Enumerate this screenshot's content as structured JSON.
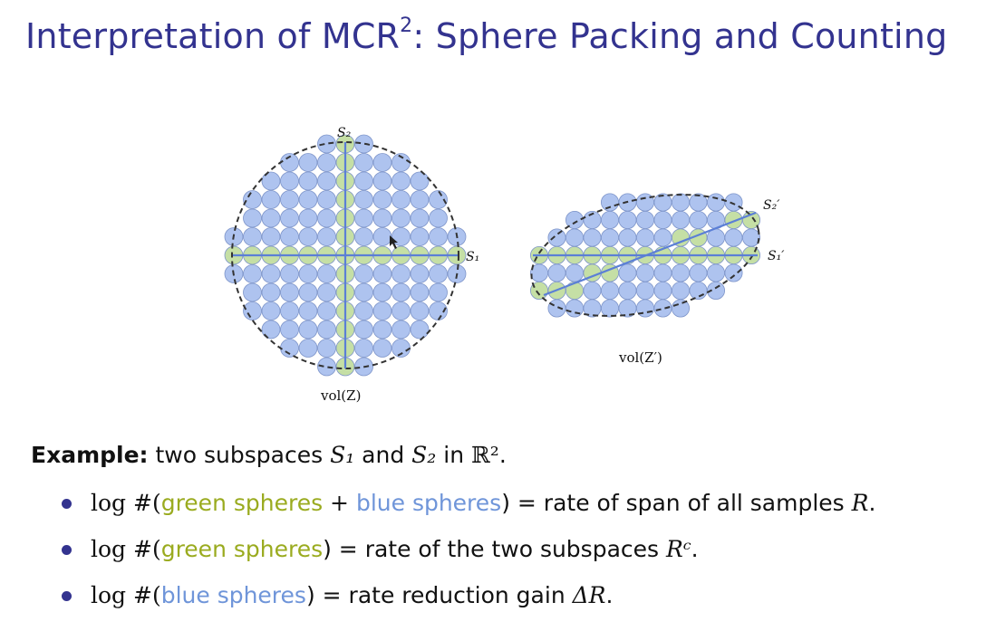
{
  "title": {
    "main": "Interpretation of MCR",
    "sup": "2",
    "rest": ": Sphere Packing and Counting"
  },
  "figure": {
    "left_top_label": "S₂",
    "left_right_label": "S₁",
    "left_caption": "vol(Z)",
    "right_label_top": "S₂′",
    "right_label_bottom": "S₁′",
    "right_caption": "vol(Z′)",
    "colors": {
      "blue_sphere": "#aec3ef",
      "green_sphere": "#c5dfa5",
      "line": "#5b7fd6",
      "outline": "#7d94c9"
    }
  },
  "example": {
    "bold": "Example:",
    "t1": "two subspaces",
    "m1": "S₁",
    "t2": "and",
    "m2": "S₂",
    "t3": "in",
    "m3": "ℝ²",
    "t4": "."
  },
  "bullets": [
    {
      "pre": "log #(",
      "green": "green spheres",
      "mid": " + ",
      "blue": "blue spheres",
      "post": ") = rate of span of all samples ",
      "math": "R",
      "end": "."
    },
    {
      "pre": "log #(",
      "green": "green spheres",
      "post": ") = rate of the two subspaces ",
      "math": "Rᶜ",
      "end": "."
    },
    {
      "pre": "log #(",
      "blue": "blue spheres",
      "post": ") = rate reduction gain ",
      "math": "ΔR",
      "end": "."
    }
  ]
}
